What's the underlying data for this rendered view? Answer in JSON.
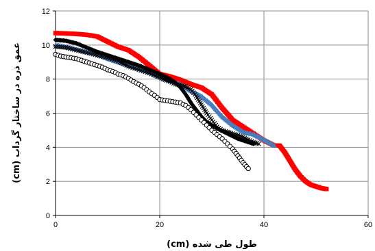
{
  "chart_data": {
    "type": "scatter",
    "xlabel": "طول طی شده (cm)",
    "ylabel": "عمق ذره در ساختار گرداب (cm)",
    "xlim": [
      0,
      60
    ],
    "ylim": [
      0,
      12
    ],
    "xticks": [
      0,
      20,
      40,
      60
    ],
    "yticks": [
      0,
      2,
      4,
      6,
      8,
      10,
      12
    ],
    "grid": true,
    "series": [
      {
        "marker": "square",
        "color": "#ff0000",
        "x": [
          0,
          2,
          4,
          6,
          8,
          10,
          12,
          14,
          16,
          18,
          20,
          22,
          24,
          26,
          28,
          30,
          32,
          34,
          36,
          38,
          40,
          42,
          43,
          44,
          45,
          46,
          47,
          48,
          49,
          50,
          51,
          52
        ],
        "y": [
          10.7,
          10.68,
          10.65,
          10.6,
          10.5,
          10.2,
          9.9,
          9.7,
          9.3,
          8.8,
          8.3,
          8.15,
          7.95,
          7.7,
          7.5,
          7.1,
          6.3,
          5.6,
          5.2,
          4.8,
          4.4,
          4.1,
          4.1,
          3.7,
          3.2,
          2.7,
          2.3,
          2.0,
          1.8,
          1.7,
          1.6,
          1.55
        ]
      },
      {
        "marker": "triangle",
        "color": "#4a7ebb",
        "x": [
          0,
          2,
          4,
          6,
          8,
          10,
          12,
          14,
          16,
          18,
          20,
          22,
          24,
          26,
          28,
          30,
          32,
          34,
          36,
          38,
          40,
          42
        ],
        "y": [
          10.0,
          9.9,
          9.75,
          9.6,
          9.45,
          9.2,
          9.0,
          8.8,
          8.6,
          8.4,
          8.1,
          7.9,
          7.7,
          7.3,
          7.0,
          6.5,
          5.8,
          5.3,
          4.9,
          4.75,
          4.45,
          4.1
        ]
      },
      {
        "marker": "cross",
        "color": "#000000",
        "x": [
          0,
          2,
          4,
          6,
          8,
          10,
          12,
          14,
          16,
          18,
          20,
          21,
          22,
          23,
          24,
          25,
          26,
          27,
          28,
          29,
          30,
          31,
          32,
          33,
          34,
          35,
          36,
          37,
          38,
          39
        ],
        "y": [
          9.9,
          9.85,
          9.7,
          9.55,
          9.4,
          9.25,
          9.05,
          8.75,
          8.55,
          8.35,
          8.1,
          7.95,
          7.85,
          7.7,
          7.65,
          7.55,
          7.4,
          7.0,
          6.5,
          6.0,
          5.6,
          5.2,
          5.0,
          4.9,
          4.8,
          4.7,
          4.6,
          4.45,
          4.3,
          4.2
        ]
      },
      {
        "marker": "diamond",
        "color": "#000000",
        "x": [
          0,
          2,
          4,
          6,
          8,
          10,
          12,
          14,
          16,
          18,
          20,
          22,
          23,
          24,
          25,
          26,
          27,
          28,
          29,
          30,
          31,
          32,
          33,
          34,
          35,
          36,
          37,
          38
        ],
        "y": [
          10.3,
          10.25,
          10.1,
          9.85,
          9.6,
          9.4,
          9.2,
          9.0,
          8.8,
          8.55,
          8.3,
          8.0,
          7.8,
          7.5,
          7.1,
          6.6,
          6.2,
          5.8,
          5.5,
          5.3,
          5.1,
          4.95,
          4.8,
          4.65,
          4.5,
          4.4,
          4.3,
          4.2
        ]
      },
      {
        "marker": "circle",
        "color": "#000000",
        "x": [
          0,
          1,
          2,
          3,
          4,
          5,
          6,
          7,
          8,
          9,
          10,
          11,
          12,
          13,
          14,
          15,
          16,
          17,
          18,
          19,
          20,
          21,
          22,
          23,
          24,
          25,
          26,
          27,
          28,
          29,
          30,
          31,
          32,
          33,
          34,
          35,
          36,
          37
        ],
        "y": [
          9.45,
          9.35,
          9.3,
          9.25,
          9.2,
          9.1,
          9.0,
          8.9,
          8.8,
          8.7,
          8.55,
          8.45,
          8.3,
          8.2,
          8.05,
          7.85,
          7.7,
          7.5,
          7.25,
          7.05,
          6.8,
          6.75,
          6.7,
          6.65,
          6.6,
          6.45,
          6.2,
          5.9,
          5.6,
          5.3,
          5.0,
          4.75,
          4.5,
          4.2,
          3.9,
          3.5,
          3.1,
          2.75
        ]
      }
    ]
  }
}
